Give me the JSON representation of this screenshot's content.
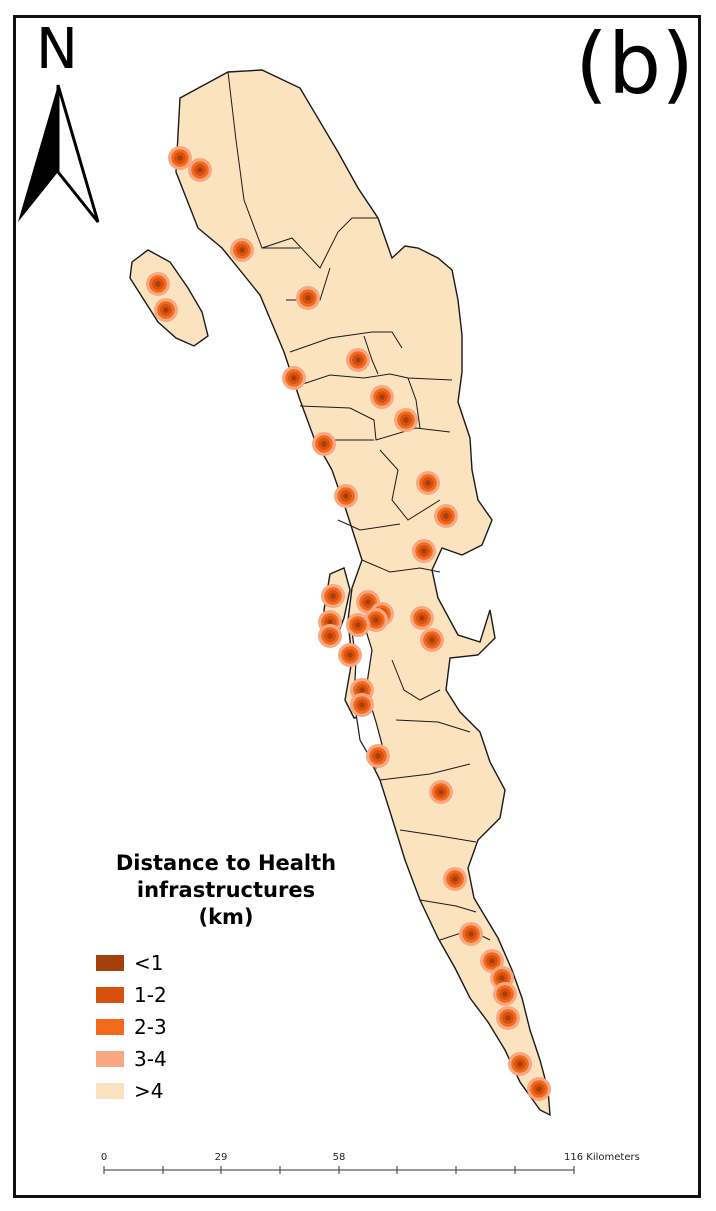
{
  "panel_label": "(b)",
  "north_arrow": {
    "letter": "N",
    "icon": "north-arrow-icon"
  },
  "legend": {
    "title_line1": "Distance to Health",
    "title_line2": "infrastructures",
    "title_line3": "(km)",
    "items": [
      {
        "label": "<1",
        "color": "#a3400c"
      },
      {
        "label": "1-2",
        "color": "#d85010"
      },
      {
        "label": "2-3",
        "color": "#f36b1a"
      },
      {
        "label": "3-4",
        "color": "#f7a883"
      },
      {
        "label": ">4",
        "color": "#fbe3bf"
      }
    ]
  },
  "scale_bar": {
    "tick_labels": [
      "0",
      "29",
      "58",
      "116 Kilometers"
    ]
  },
  "colors": {
    "land": "#fbe3bf",
    "boundary": "#1a1a1a",
    "water": "#ffffff"
  }
}
